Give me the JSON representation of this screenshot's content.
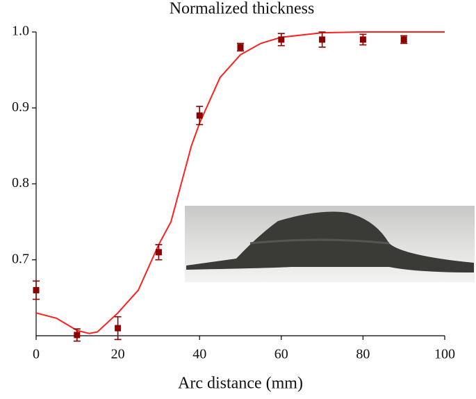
{
  "chart_data": {
    "type": "scatter",
    "title": "Normalized thickness",
    "x_label": "Arc distance (mm)",
    "xlim": [
      0,
      100
    ],
    "ylim": [
      0.6,
      1.0
    ],
    "xticks": [
      0,
      20,
      40,
      60,
      80,
      100
    ],
    "yticks": [
      0.7,
      0.8,
      0.9,
      {
        "value": 1.0,
        "label": "1.0"
      }
    ],
    "points": {
      "x": [
        0,
        10,
        20,
        30,
        40,
        50,
        60,
        70,
        80,
        90
      ],
      "values": [
        0.66,
        0.601,
        0.61,
        0.71,
        0.89,
        0.98,
        0.99,
        0.99,
        0.99,
        0.99
      ],
      "errors": [
        0.012,
        0.008,
        0.015,
        0.01,
        0.012,
        0.005,
        0.008,
        0.01,
        0.007,
        0.005
      ],
      "color": "#8b0000"
    },
    "fit": {
      "x": [
        0,
        5,
        10,
        13,
        15,
        20,
        25,
        30,
        33,
        35,
        38,
        40,
        45,
        50,
        55,
        60,
        70,
        80,
        90,
        100
      ],
      "values": [
        0.63,
        0.623,
        0.607,
        0.603,
        0.605,
        0.63,
        0.66,
        0.72,
        0.75,
        0.79,
        0.85,
        0.88,
        0.94,
        0.97,
        0.985,
        0.993,
        0.999,
        1.0,
        1.0,
        1.0
      ],
      "color": "#ff2020"
    }
  }
}
